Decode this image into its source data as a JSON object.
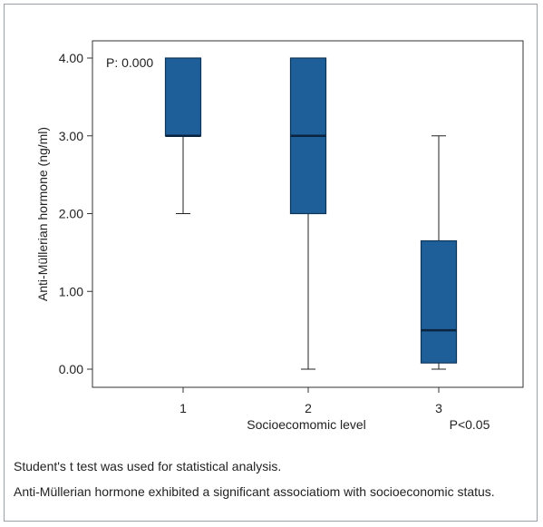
{
  "chart_data": {
    "type": "box",
    "title": "",
    "xlabel": "Socioecomomic level",
    "ylabel": "Anti-Müllerian hormone (ng/ml)",
    "ylim": [
      0,
      4
    ],
    "yticks": [
      "0.00",
      "1.00",
      "2.00",
      "3.00",
      "4.00"
    ],
    "categories": [
      "1",
      "2",
      "3"
    ],
    "boxes": [
      {
        "category": "1",
        "min": 2.0,
        "q1": 3.0,
        "median": 3.0,
        "q3": 4.0,
        "max": 4.0
      },
      {
        "category": "2",
        "min": 0.0,
        "q1": 2.0,
        "median": 3.0,
        "q3": 4.0,
        "max": 4.0
      },
      {
        "category": "3",
        "min": 0.0,
        "q1": 0.08,
        "median": 0.5,
        "q3": 1.65,
        "max": 3.0
      }
    ],
    "annotations": {
      "top_left": "P: 0.000",
      "bottom_right": "P<0.05"
    },
    "grid": false,
    "box_color": "#1f5f99",
    "box_edge_color": "#0d3558"
  },
  "notes": [
    "Student's t test was used for statistical analysis.",
    "Anti-Müllerian hormone exhibited a significant associatiom with socioeconomic status."
  ]
}
